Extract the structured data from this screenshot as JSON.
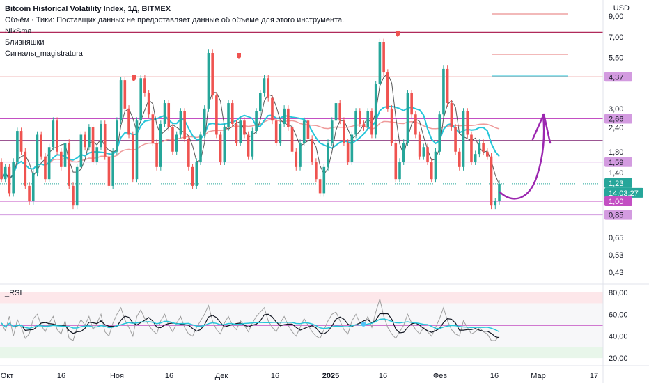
{
  "header": {
    "title": "Bitcoin Historical Volatility Index, 1Д, BITMEX",
    "volume_note": "Объём · Тики: Поставщик данных не предоставляет данные об объеме для этого инструмента.",
    "indicators": [
      "NikSma",
      "Близняшки",
      "Сигналы_magistratura"
    ],
    "currency": "USD"
  },
  "rsi_panel": {
    "label": "_RSI",
    "levels": [
      "80,00",
      "60,00",
      "40,00",
      "20,00"
    ]
  },
  "price_axis": {
    "labels": [
      "9,00",
      "7,00",
      "5,50",
      "3,00",
      "2,40",
      "1,80",
      "1,40",
      "0,65",
      "0,53",
      "0,43"
    ],
    "tags": [
      {
        "text": "4,37",
        "color": "#d39be0"
      },
      {
        "text": "2,66",
        "color": "#d39be0"
      },
      {
        "text": "1,59",
        "color": "#d39be0"
      },
      {
        "text": "1,23",
        "color": "#26a69a"
      },
      {
        "text": "14:03:27",
        "color": "#26a69a"
      },
      {
        "text": "1,00",
        "color": "#c34fc3"
      },
      {
        "text": "0,85",
        "color": "#d39be0"
      }
    ]
  },
  "time_axis": {
    "labels": [
      "Окт",
      "16",
      "Ноя",
      "16",
      "Дек",
      "16",
      "2025",
      "16",
      "Фев",
      "16",
      "Мар",
      "17"
    ]
  },
  "chart_data": {
    "type": "candlestick",
    "series_note": "daily candles",
    "y_scale": "log",
    "ylim": [
      0.4,
      10
    ],
    "rsi_ylim": [
      15,
      85
    ],
    "horizontal_levels": [
      7.4,
      4.37,
      2.66,
      2.05,
      1.59,
      1.0,
      0.85
    ],
    "current_price": 1.23,
    "candles": [
      [
        1.6,
        1.3
      ],
      [
        1.3,
        1.5
      ],
      [
        1.5,
        1.1
      ],
      [
        1.1,
        1.6
      ],
      [
        1.6,
        2.3
      ],
      [
        2.3,
        1.8
      ],
      [
        1.8,
        1.2
      ],
      [
        1.2,
        1.0
      ],
      [
        1.0,
        1.4
      ],
      [
        1.4,
        2.2
      ],
      [
        2.2,
        1.7
      ],
      [
        1.7,
        1.3
      ],
      [
        1.3,
        1.9
      ],
      [
        1.9,
        2.6
      ],
      [
        2.6,
        1.8
      ],
      [
        1.8,
        1.5
      ],
      [
        1.5,
        2.0
      ],
      [
        2.0,
        1.2
      ],
      [
        1.2,
        0.95
      ],
      [
        0.95,
        1.5
      ],
      [
        1.5,
        2.2
      ],
      [
        2.2,
        1.9
      ],
      [
        1.9,
        2.4
      ],
      [
        2.4,
        1.6
      ],
      [
        1.6,
        1.9
      ],
      [
        1.9,
        2.5
      ],
      [
        2.5,
        1.7
      ],
      [
        1.7,
        1.2
      ],
      [
        1.2,
        1.8
      ],
      [
        1.8,
        2.6
      ],
      [
        2.6,
        4.2
      ],
      [
        4.2,
        3.0
      ],
      [
        3.0,
        2.2
      ],
      [
        2.2,
        1.3
      ],
      [
        1.3,
        2.6
      ],
      [
        2.6,
        4.3
      ],
      [
        4.3,
        3.6
      ],
      [
        3.6,
        2.8
      ],
      [
        2.8,
        2.0
      ],
      [
        2.0,
        1.5
      ],
      [
        1.5,
        2.5
      ],
      [
        2.5,
        3.2
      ],
      [
        3.2,
        2.4
      ],
      [
        2.4,
        1.8
      ],
      [
        1.8,
        2.2
      ],
      [
        2.2,
        2.9
      ],
      [
        2.9,
        2.1
      ],
      [
        2.1,
        1.5
      ],
      [
        1.5,
        1.2
      ],
      [
        1.2,
        1.6
      ],
      [
        1.6,
        2.2
      ],
      [
        2.2,
        3.0
      ],
      [
        3.0,
        5.8
      ],
      [
        5.8,
        3.5
      ],
      [
        3.5,
        2.2
      ],
      [
        2.2,
        1.6
      ],
      [
        1.6,
        2.4
      ],
      [
        2.4,
        3.2
      ],
      [
        3.2,
        2.5
      ],
      [
        2.5,
        2.0
      ],
      [
        2.0,
        2.6
      ],
      [
        2.6,
        2.2
      ],
      [
        2.2,
        1.7
      ],
      [
        1.7,
        2.3
      ],
      [
        2.3,
        2.9
      ],
      [
        2.9,
        3.6
      ],
      [
        3.6,
        4.3
      ],
      [
        4.3,
        3.4
      ],
      [
        3.4,
        2.6
      ],
      [
        2.6,
        2.0
      ],
      [
        2.0,
        2.5
      ],
      [
        2.5,
        3.0
      ],
      [
        3.0,
        2.4
      ],
      [
        2.4,
        1.8
      ],
      [
        1.8,
        1.5
      ],
      [
        1.5,
        2.0
      ],
      [
        2.0,
        2.6
      ],
      [
        2.6,
        2.1
      ],
      [
        2.1,
        1.6
      ],
      [
        1.6,
        1.3
      ],
      [
        1.3,
        1.1
      ],
      [
        1.1,
        1.5
      ],
      [
        1.5,
        2.0
      ],
      [
        2.0,
        2.6
      ],
      [
        2.6,
        3.2
      ],
      [
        3.2,
        2.6
      ],
      [
        2.6,
        2.0
      ],
      [
        2.0,
        1.6
      ],
      [
        1.6,
        2.2
      ],
      [
        2.2,
        2.9
      ],
      [
        2.9,
        2.5
      ],
      [
        2.5,
        2.4
      ],
      [
        2.4,
        2.9
      ],
      [
        2.9,
        2.2
      ],
      [
        2.2,
        4.0
      ],
      [
        4.0,
        6.6
      ],
      [
        6.6,
        4.6
      ],
      [
        4.6,
        3.0
      ],
      [
        3.0,
        2.0
      ],
      [
        2.0,
        1.3
      ],
      [
        1.3,
        1.6
      ],
      [
        1.6,
        2.0
      ],
      [
        2.0,
        3.6
      ],
      [
        3.6,
        2.8
      ],
      [
        2.8,
        2.2
      ],
      [
        2.2,
        1.7
      ],
      [
        1.7,
        1.9
      ],
      [
        1.9,
        1.6
      ],
      [
        1.6,
        1.3
      ],
      [
        1.3,
        1.8
      ],
      [
        1.8,
        2.8
      ],
      [
        2.8,
        4.8
      ],
      [
        4.8,
        3.2
      ],
      [
        3.2,
        2.4
      ],
      [
        2.4,
        1.8
      ],
      [
        1.8,
        1.5
      ],
      [
        1.5,
        2.9
      ],
      [
        2.9,
        2.2
      ],
      [
        2.2,
        1.6
      ],
      [
        1.6,
        1.75
      ],
      [
        1.75,
        2.0
      ],
      [
        2.0,
        1.8
      ],
      [
        1.8,
        1.7
      ],
      [
        1.7,
        0.95
      ],
      [
        0.95,
        1.0
      ],
      [
        1.0,
        1.23
      ]
    ],
    "rsi_values": [
      52,
      45,
      58,
      40,
      55,
      48,
      38,
      42,
      56,
      60,
      50,
      44,
      52,
      58,
      46,
      42,
      54,
      38,
      36,
      48,
      55,
      50,
      58,
      46,
      52,
      60,
      44,
      40,
      52,
      60,
      66,
      55,
      48,
      40,
      58,
      64,
      56,
      50,
      45,
      42,
      54,
      60,
      50,
      44,
      52,
      58,
      48,
      42,
      40,
      48,
      54,
      60,
      68,
      54,
      46,
      42,
      52,
      58,
      50,
      46,
      54,
      50,
      44,
      52,
      58,
      62,
      66,
      54,
      48,
      44,
      52,
      58,
      50,
      44,
      40,
      48,
      56,
      50,
      44,
      40,
      38,
      46,
      54,
      60,
      62,
      54,
      46,
      42,
      54,
      60,
      52,
      50,
      58,
      48,
      62,
      74,
      58,
      48,
      42,
      38,
      44,
      50,
      60,
      52,
      46,
      42,
      48,
      44,
      40,
      48,
      56,
      66,
      54,
      46,
      42,
      40,
      54,
      48,
      42,
      44,
      48,
      44,
      42,
      36,
      36,
      40
    ]
  }
}
